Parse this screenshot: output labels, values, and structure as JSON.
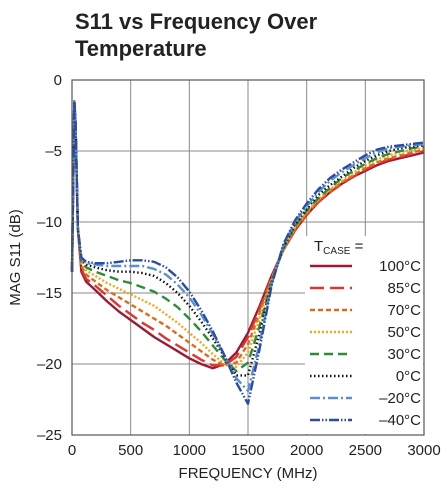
{
  "chart_data": {
    "type": "line",
    "title": "S11 vs Frequency Over Temperature",
    "xlabel": "FREQUENCY (MHz)",
    "ylabel": "MAG S11 (dB)",
    "xlim": [
      0,
      3000
    ],
    "ylim": [
      -25,
      0
    ],
    "xticks": [
      0,
      500,
      1000,
      1500,
      2000,
      2500,
      3000
    ],
    "yticks": [
      0,
      -5,
      -10,
      -15,
      -20,
      -25
    ],
    "xtick_labels": [
      "0",
      "500",
      "1000",
      "1500",
      "2000",
      "2500",
      "3000"
    ],
    "ytick_labels": [
      "0",
      "–5",
      "–10",
      "–15",
      "–20",
      "–25"
    ],
    "grid": true,
    "legend_title": {
      "main": "T",
      "sub": "CASE",
      "suffix": " ="
    },
    "legend_placement": "bottom-right",
    "series": [
      {
        "name": "100°C",
        "color": "#9b1b30",
        "dash": "",
        "x": [
          0,
          20,
          30,
          50,
          80,
          120,
          200,
          300,
          400,
          500,
          600,
          700,
          800,
          900,
          1000,
          1100,
          1200,
          1300,
          1400,
          1500,
          1600,
          1700,
          1800,
          1900,
          2000,
          2100,
          2200,
          2300,
          2400,
          2500,
          2600,
          2700,
          2800,
          2900,
          3000
        ],
        "y": [
          -13.5,
          -1.5,
          -3,
          -10.5,
          -13.5,
          -14.2,
          -14.8,
          -15.6,
          -16.3,
          -16.9,
          -17.5,
          -18.1,
          -18.6,
          -19.1,
          -19.6,
          -20.0,
          -20.3,
          -20.0,
          -19.2,
          -17.8,
          -15.9,
          -13.8,
          -12.0,
          -10.6,
          -9.5,
          -8.6,
          -7.9,
          -7.3,
          -6.8,
          -6.4,
          -6.0,
          -5.7,
          -5.5,
          -5.3,
          -5.1
        ]
      },
      {
        "name": "85°C",
        "color": "#e0342f",
        "dash": "14 6",
        "x": [
          0,
          20,
          30,
          50,
          80,
          120,
          200,
          300,
          400,
          500,
          600,
          700,
          800,
          900,
          1000,
          1100,
          1200,
          1300,
          1400,
          1500,
          1600,
          1700,
          1800,
          1900,
          2000,
          2100,
          2200,
          2300,
          2400,
          2500,
          2600,
          2700,
          2800,
          2900,
          3000
        ],
        "y": [
          -13.5,
          -1.5,
          -3,
          -10.5,
          -13.3,
          -14.0,
          -14.5,
          -15.2,
          -15.9,
          -16.5,
          -17.1,
          -17.6,
          -18.2,
          -18.7,
          -19.2,
          -19.7,
          -20.1,
          -20.1,
          -19.5,
          -18.1,
          -16.1,
          -13.9,
          -12.0,
          -10.6,
          -9.5,
          -8.6,
          -7.9,
          -7.3,
          -6.8,
          -6.3,
          -5.9,
          -5.6,
          -5.4,
          -5.2,
          -5.0
        ]
      },
      {
        "name": "70°C",
        "color": "#e06a1a",
        "dash": "5 3",
        "x": [
          0,
          20,
          30,
          50,
          80,
          120,
          200,
          300,
          400,
          500,
          600,
          700,
          800,
          900,
          1000,
          1100,
          1200,
          1300,
          1400,
          1500,
          1600,
          1700,
          1800,
          1900,
          2000,
          2100,
          2200,
          2300,
          2400,
          2500,
          2600,
          2700,
          2800,
          2900,
          3000
        ],
        "y": [
          -13.5,
          -1.5,
          -3,
          -10.5,
          -13.1,
          -13.7,
          -14.2,
          -14.8,
          -15.3,
          -15.8,
          -16.3,
          -16.8,
          -17.3,
          -17.9,
          -18.5,
          -19.1,
          -19.7,
          -20.1,
          -19.9,
          -18.6,
          -16.4,
          -14.0,
          -12.0,
          -10.5,
          -9.4,
          -8.5,
          -7.8,
          -7.2,
          -6.7,
          -6.2,
          -5.8,
          -5.5,
          -5.3,
          -5.1,
          -4.9
        ]
      },
      {
        "name": "50°C",
        "color": "#f2a81d",
        "dash": "2 2",
        "x": [
          0,
          20,
          30,
          50,
          80,
          120,
          200,
          300,
          400,
          500,
          600,
          700,
          800,
          900,
          1000,
          1100,
          1200,
          1300,
          1400,
          1500,
          1600,
          1700,
          1800,
          1900,
          2000,
          2100,
          2200,
          2300,
          2400,
          2500,
          2600,
          2700,
          2800,
          2900,
          3000
        ],
        "y": [
          -13.5,
          -1.5,
          -3,
          -10.5,
          -12.9,
          -13.4,
          -13.8,
          -14.3,
          -14.7,
          -15.1,
          -15.5,
          -15.9,
          -16.5,
          -17.1,
          -17.8,
          -18.5,
          -19.3,
          -20.0,
          -20.2,
          -19.2,
          -16.8,
          -14.1,
          -12.0,
          -10.4,
          -9.3,
          -8.4,
          -7.7,
          -7.1,
          -6.5,
          -6.0,
          -5.6,
          -5.3,
          -5.1,
          -4.9,
          -4.8
        ]
      },
      {
        "name": "30°C",
        "color": "#2e8b3a",
        "dash": "9 5",
        "x": [
          0,
          20,
          30,
          50,
          80,
          120,
          200,
          300,
          400,
          500,
          600,
          700,
          800,
          900,
          1000,
          1100,
          1200,
          1300,
          1400,
          1500,
          1600,
          1700,
          1800,
          1900,
          2000,
          2100,
          2200,
          2300,
          2400,
          2500,
          2600,
          2700,
          2800,
          2900,
          3000
        ],
        "y": [
          -13.5,
          -1.5,
          -3,
          -10.5,
          -12.8,
          -13.2,
          -13.5,
          -13.8,
          -14.1,
          -14.3,
          -14.6,
          -14.9,
          -15.4,
          -16.0,
          -16.8,
          -17.7,
          -18.7,
          -19.7,
          -20.5,
          -19.9,
          -17.3,
          -14.2,
          -11.9,
          -10.3,
          -9.2,
          -8.3,
          -7.6,
          -6.9,
          -6.4,
          -5.9,
          -5.5,
          -5.2,
          -5.0,
          -4.8,
          -4.7
        ]
      },
      {
        "name": "0°C",
        "color": "#111111",
        "dash": "1.5 2.5",
        "x": [
          0,
          20,
          30,
          50,
          80,
          120,
          200,
          300,
          400,
          500,
          600,
          700,
          800,
          900,
          1000,
          1100,
          1200,
          1300,
          1400,
          1500,
          1600,
          1700,
          1800,
          1900,
          2000,
          2100,
          2200,
          2300,
          2400,
          2500,
          2600,
          2700,
          2800,
          2900,
          3000
        ],
        "y": [
          -13.5,
          -1.5,
          -3,
          -10.5,
          -12.7,
          -13.0,
          -13.2,
          -13.4,
          -13.5,
          -13.5,
          -13.6,
          -13.8,
          -14.3,
          -15.0,
          -15.9,
          -17.0,
          -18.2,
          -19.5,
          -20.8,
          -20.8,
          -17.8,
          -14.3,
          -11.8,
          -10.2,
          -9.1,
          -8.1,
          -7.4,
          -6.8,
          -6.2,
          -5.7,
          -5.3,
          -5.0,
          -4.8,
          -4.7,
          -4.6
        ]
      },
      {
        "name": "–20°C",
        "color": "#5b8fd0",
        "dash": "10 3 2 3",
        "x": [
          0,
          20,
          30,
          50,
          80,
          120,
          200,
          300,
          400,
          500,
          600,
          700,
          800,
          900,
          1000,
          1100,
          1200,
          1300,
          1400,
          1500,
          1600,
          1700,
          1800,
          1900,
          2000,
          2100,
          2200,
          2300,
          2400,
          2500,
          2600,
          2700,
          2800,
          2900,
          3000
        ],
        "y": [
          -13.5,
          -1.5,
          -3,
          -10.5,
          -12.6,
          -12.9,
          -13.0,
          -13.1,
          -13.1,
          -13.1,
          -13.1,
          -13.3,
          -13.7,
          -14.4,
          -15.3,
          -16.5,
          -17.9,
          -19.4,
          -21.0,
          -21.9,
          -18.5,
          -14.4,
          -11.7,
          -10.0,
          -8.9,
          -7.9,
          -7.1,
          -6.5,
          -6.0,
          -5.5,
          -5.1,
          -4.8,
          -4.7,
          -4.6,
          -4.5
        ]
      },
      {
        "name": "–40°C",
        "color": "#2c4ba3",
        "dash": "10 2 1.5 2 1.5 2",
        "x": [
          0,
          20,
          30,
          50,
          80,
          120,
          200,
          300,
          400,
          500,
          600,
          700,
          800,
          900,
          1000,
          1100,
          1200,
          1300,
          1400,
          1500,
          1600,
          1700,
          1800,
          1900,
          2000,
          2100,
          2200,
          2300,
          2400,
          2500,
          2600,
          2700,
          2800,
          2900,
          3000
        ],
        "y": [
          -13.5,
          -1.5,
          -3,
          -10.5,
          -12.5,
          -12.8,
          -12.9,
          -12.9,
          -12.8,
          -12.7,
          -12.7,
          -12.8,
          -13.2,
          -13.9,
          -14.9,
          -16.2,
          -17.7,
          -19.4,
          -21.3,
          -22.8,
          -18.9,
          -14.5,
          -11.6,
          -9.9,
          -8.7,
          -7.7,
          -6.9,
          -6.3,
          -5.8,
          -5.3,
          -4.9,
          -4.7,
          -4.6,
          -4.5,
          -4.4
        ]
      }
    ]
  }
}
